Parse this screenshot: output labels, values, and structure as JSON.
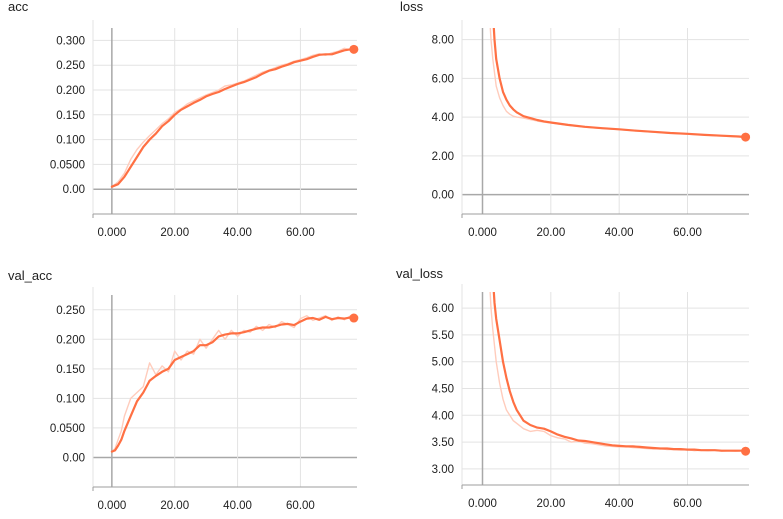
{
  "colors": {
    "smoothed": "#ff7043",
    "raw": "#ffccbc",
    "grid": "#e3e3e3",
    "axis": "#9e9e9e",
    "zero": "#a8a8a8"
  },
  "chart_data": [
    {
      "type": "line",
      "title": "acc",
      "xlabel": "",
      "ylabel": "",
      "xlim": [
        -6,
        78
      ],
      "ylim": [
        -0.05,
        0.325
      ],
      "xticks": [
        0,
        20,
        40,
        60
      ],
      "xtick_labels": [
        "0.000",
        "20.00",
        "40.00",
        "60.00"
      ],
      "yticks": [
        0,
        0.05,
        0.1,
        0.15,
        0.2,
        0.25,
        0.3
      ],
      "ytick_labels": [
        "0.00",
        "0.0500",
        "0.100",
        "0.150",
        "0.200",
        "0.250",
        "0.300"
      ],
      "grid": true,
      "last_point_marker": true,
      "series": [
        {
          "role": "smoothed",
          "x": [
            0,
            2,
            4,
            6,
            8,
            10,
            12,
            14,
            16,
            18,
            20,
            22,
            24,
            26,
            28,
            30,
            32,
            34,
            36,
            38,
            40,
            42,
            44,
            46,
            48,
            50,
            52,
            54,
            56,
            58,
            60,
            62,
            64,
            66,
            68,
            70,
            72,
            74,
            76,
            77
          ],
          "y": [
            0.005,
            0.01,
            0.025,
            0.045,
            0.065,
            0.085,
            0.1,
            0.112,
            0.127,
            0.137,
            0.15,
            0.16,
            0.167,
            0.174,
            0.18,
            0.187,
            0.192,
            0.196,
            0.202,
            0.207,
            0.212,
            0.216,
            0.221,
            0.226,
            0.233,
            0.239,
            0.242,
            0.247,
            0.251,
            0.256,
            0.259,
            0.262,
            0.267,
            0.271,
            0.272,
            0.272,
            0.276,
            0.28,
            0.282,
            0.282
          ]
        },
        {
          "role": "raw",
          "x": [
            0,
            2,
            4,
            6,
            8,
            10,
            12,
            14,
            16,
            18,
            20,
            22,
            24,
            26,
            28,
            30,
            32,
            34,
            36,
            38,
            40,
            42,
            44,
            46,
            48,
            50,
            52,
            54,
            56,
            58,
            60,
            62,
            64,
            66,
            68,
            70,
            72,
            74,
            76,
            77
          ],
          "y": [
            0.005,
            0.015,
            0.032,
            0.06,
            0.08,
            0.095,
            0.108,
            0.12,
            0.132,
            0.142,
            0.155,
            0.162,
            0.172,
            0.178,
            0.184,
            0.19,
            0.195,
            0.2,
            0.208,
            0.21,
            0.214,
            0.218,
            0.224,
            0.23,
            0.236,
            0.24,
            0.245,
            0.25,
            0.253,
            0.258,
            0.261,
            0.265,
            0.27,
            0.273,
            0.27,
            0.275,
            0.278,
            0.284,
            0.281,
            0.282
          ]
        }
      ]
    },
    {
      "type": "line",
      "title": "loss",
      "xlabel": "",
      "ylabel": "",
      "xlim": [
        -6,
        78
      ],
      "ylim": [
        -1.0,
        8.6
      ],
      "xticks": [
        0,
        20,
        40,
        60
      ],
      "xtick_labels": [
        "0.000",
        "20.00",
        "40.00",
        "60.00"
      ],
      "yticks": [
        0,
        2,
        4,
        6,
        8
      ],
      "ytick_labels": [
        "0.00",
        "2.00",
        "4.00",
        "6.00",
        "8.00"
      ],
      "grid": true,
      "last_point_marker": true,
      "series": [
        {
          "role": "smoothed",
          "x": [
            3,
            3.5,
            4,
            5,
            6,
            7,
            8,
            9,
            10,
            12,
            14,
            16,
            18,
            20,
            25,
            30,
            35,
            40,
            45,
            50,
            55,
            60,
            65,
            70,
            75,
            77
          ],
          "y": [
            9.5,
            8.0,
            7.0,
            6.0,
            5.3,
            4.9,
            4.6,
            4.4,
            4.25,
            4.05,
            3.95,
            3.85,
            3.78,
            3.72,
            3.6,
            3.5,
            3.43,
            3.37,
            3.3,
            3.24,
            3.18,
            3.14,
            3.08,
            3.04,
            3.0,
            2.97
          ]
        },
        {
          "role": "raw",
          "x": [
            2,
            2.5,
            3,
            4,
            5,
            6,
            7,
            8,
            9,
            10,
            12,
            14,
            16,
            18,
            20,
            25,
            30,
            35,
            40,
            45,
            50,
            55,
            60,
            65,
            70,
            75,
            77
          ],
          "y": [
            9.5,
            8.0,
            7.0,
            5.6,
            5.0,
            4.6,
            4.3,
            4.15,
            4.05,
            4.0,
            3.95,
            3.87,
            3.8,
            3.74,
            3.7,
            3.58,
            3.48,
            3.42,
            3.36,
            3.29,
            3.22,
            3.17,
            3.12,
            3.07,
            3.02,
            2.98,
            2.97
          ]
        }
      ]
    },
    {
      "type": "line",
      "title": "val_acc",
      "xlabel": "",
      "ylabel": "",
      "xlim": [
        -6,
        78
      ],
      "ylim": [
        -0.05,
        0.275
      ],
      "xticks": [
        0,
        20,
        40,
        60
      ],
      "xtick_labels": [
        "0.000",
        "20.00",
        "40.00",
        "60.00"
      ],
      "yticks": [
        0,
        0.05,
        0.1,
        0.15,
        0.2,
        0.25
      ],
      "ytick_labels": [
        "0.00",
        "0.0500",
        "0.100",
        "0.150",
        "0.200",
        "0.250"
      ],
      "grid": true,
      "last_point_marker": true,
      "series": [
        {
          "role": "smoothed",
          "x": [
            0,
            1,
            2,
            3,
            4,
            6,
            8,
            10,
            12,
            14,
            16,
            18,
            20,
            22,
            24,
            26,
            28,
            30,
            32,
            34,
            36,
            38,
            40,
            42,
            44,
            46,
            48,
            50,
            52,
            54,
            56,
            58,
            60,
            62,
            64,
            66,
            68,
            70,
            72,
            74,
            76,
            77
          ],
          "y": [
            0.01,
            0.012,
            0.02,
            0.03,
            0.045,
            0.07,
            0.095,
            0.11,
            0.13,
            0.138,
            0.145,
            0.15,
            0.165,
            0.17,
            0.175,
            0.18,
            0.19,
            0.19,
            0.195,
            0.205,
            0.208,
            0.21,
            0.21,
            0.212,
            0.215,
            0.218,
            0.22,
            0.22,
            0.222,
            0.225,
            0.226,
            0.224,
            0.23,
            0.235,
            0.236,
            0.233,
            0.238,
            0.234,
            0.236,
            0.235,
            0.237,
            0.236
          ]
        },
        {
          "role": "raw",
          "x": [
            0,
            1,
            2,
            3,
            4,
            6,
            8,
            10,
            12,
            14,
            16,
            18,
            20,
            22,
            24,
            26,
            28,
            30,
            32,
            34,
            36,
            38,
            40,
            42,
            44,
            46,
            48,
            50,
            52,
            54,
            56,
            58,
            60,
            62,
            64,
            66,
            68,
            70,
            72,
            74,
            76,
            77
          ],
          "y": [
            0.01,
            0.015,
            0.03,
            0.045,
            0.07,
            0.1,
            0.11,
            0.12,
            0.16,
            0.14,
            0.155,
            0.145,
            0.18,
            0.165,
            0.18,
            0.175,
            0.2,
            0.185,
            0.2,
            0.215,
            0.2,
            0.215,
            0.205,
            0.215,
            0.212,
            0.222,
            0.215,
            0.225,
            0.22,
            0.23,
            0.225,
            0.22,
            0.235,
            0.24,
            0.232,
            0.236,
            0.24,
            0.232,
            0.238,
            0.233,
            0.24,
            0.236
          ]
        }
      ]
    },
    {
      "type": "line",
      "title": "val_loss",
      "xlabel": "",
      "ylabel": "",
      "xlim": [
        -6,
        78
      ],
      "ylim": [
        2.7,
        6.3
      ],
      "xticks": [
        0,
        20,
        40,
        60
      ],
      "xtick_labels": [
        "0.000",
        "20.00",
        "40.00",
        "60.00"
      ],
      "yticks": [
        3,
        3.5,
        4,
        4.5,
        5,
        5.5,
        6
      ],
      "ytick_labels": [
        "3.00",
        "3.50",
        "4.00",
        "4.50",
        "5.00",
        "5.50",
        "6.00"
      ],
      "grid": true,
      "last_point_marker": true,
      "series": [
        {
          "role": "smoothed",
          "x": [
            3,
            3.5,
            4,
            5,
            6,
            7,
            8,
            9,
            10,
            12,
            14,
            16,
            18,
            20,
            22,
            24,
            26,
            28,
            30,
            32,
            34,
            36,
            38,
            40,
            42,
            44,
            46,
            48,
            50,
            52,
            54,
            56,
            58,
            60,
            62,
            64,
            66,
            68,
            70,
            72,
            74,
            76,
            77
          ],
          "y": [
            6.6,
            6.1,
            5.8,
            5.4,
            5.0,
            4.7,
            4.45,
            4.25,
            4.1,
            3.9,
            3.82,
            3.77,
            3.75,
            3.7,
            3.64,
            3.6,
            3.57,
            3.53,
            3.52,
            3.5,
            3.48,
            3.46,
            3.44,
            3.43,
            3.42,
            3.42,
            3.41,
            3.4,
            3.39,
            3.38,
            3.38,
            3.37,
            3.37,
            3.36,
            3.36,
            3.35,
            3.35,
            3.35,
            3.34,
            3.34,
            3.34,
            3.34,
            3.33
          ]
        },
        {
          "role": "raw",
          "x": [
            2,
            2.5,
            3,
            4,
            5,
            6,
            7,
            8,
            9,
            10,
            12,
            14,
            16,
            18,
            20,
            22,
            24,
            26,
            28,
            30,
            32,
            34,
            36,
            38,
            40,
            42,
            44,
            46,
            48,
            50,
            52,
            54,
            56,
            58,
            60,
            62,
            64,
            66,
            68,
            70,
            72,
            74,
            76,
            77
          ],
          "y": [
            6.6,
            6.0,
            5.6,
            5.0,
            4.6,
            4.3,
            4.1,
            4.0,
            3.9,
            3.85,
            3.75,
            3.7,
            3.72,
            3.7,
            3.62,
            3.58,
            3.56,
            3.5,
            3.52,
            3.48,
            3.47,
            3.45,
            3.43,
            3.42,
            3.41,
            3.42,
            3.4,
            3.39,
            3.38,
            3.37,
            3.38,
            3.36,
            3.36,
            3.35,
            3.36,
            3.34,
            3.35,
            3.34,
            3.35,
            3.33,
            3.34,
            3.33,
            3.34,
            3.33
          ]
        }
      ]
    }
  ]
}
